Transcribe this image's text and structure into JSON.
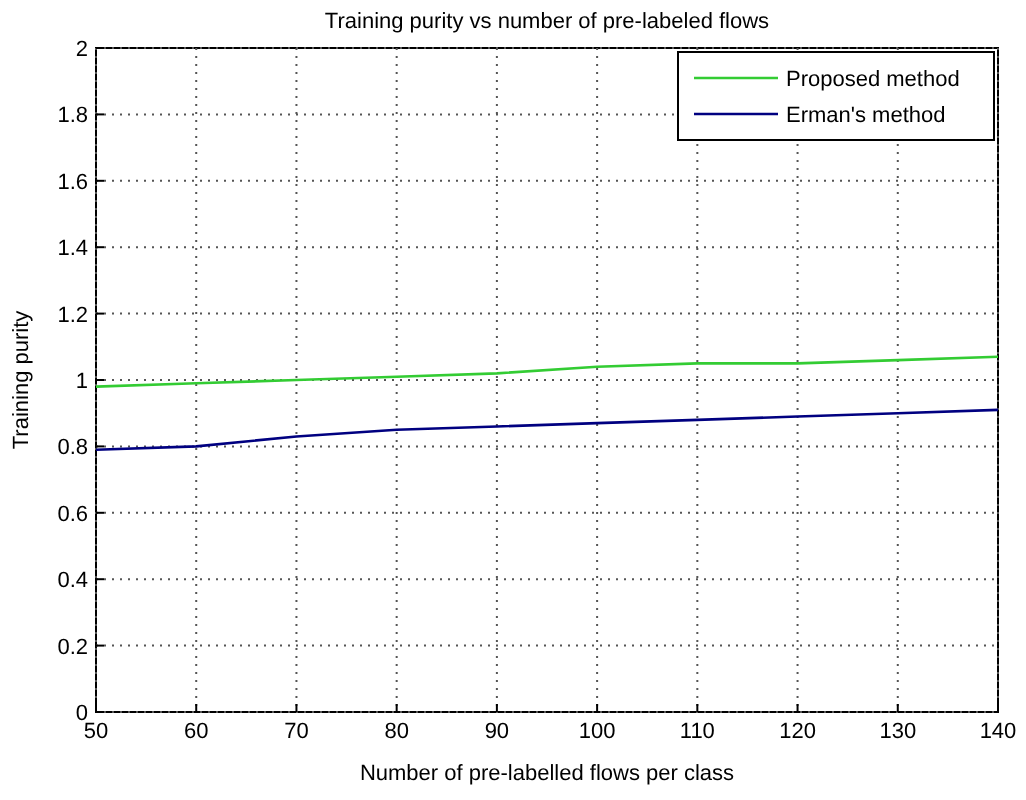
{
  "chart_data": {
    "type": "line",
    "title": "Training purity vs number of pre-labeled flows",
    "xlabel": "Number of pre-labelled flows per class",
    "ylabel": "Training purity",
    "x": [
      50,
      60,
      70,
      80,
      90,
      100,
      110,
      120,
      130,
      140
    ],
    "series": [
      {
        "name": "Proposed method",
        "color": "#33cc33",
        "values": [
          0.98,
          0.99,
          1.0,
          1.01,
          1.02,
          1.04,
          1.05,
          1.05,
          1.06,
          1.07
        ]
      },
      {
        "name": "Erman's method",
        "color": "#000080",
        "values": [
          0.79,
          0.8,
          0.83,
          0.85,
          0.86,
          0.87,
          0.88,
          0.89,
          0.9,
          0.91
        ]
      }
    ],
    "xlim": [
      50,
      140
    ],
    "xticks": [
      50,
      60,
      70,
      80,
      90,
      100,
      110,
      120,
      130,
      140
    ],
    "ylim": [
      0,
      2
    ],
    "yticks": [
      0,
      0.2,
      0.4,
      0.6,
      0.8,
      1,
      1.2,
      1.4,
      1.6,
      1.8,
      2
    ],
    "grid": true,
    "legend": "top right",
    "line_style": "solid",
    "marker": "none"
  }
}
